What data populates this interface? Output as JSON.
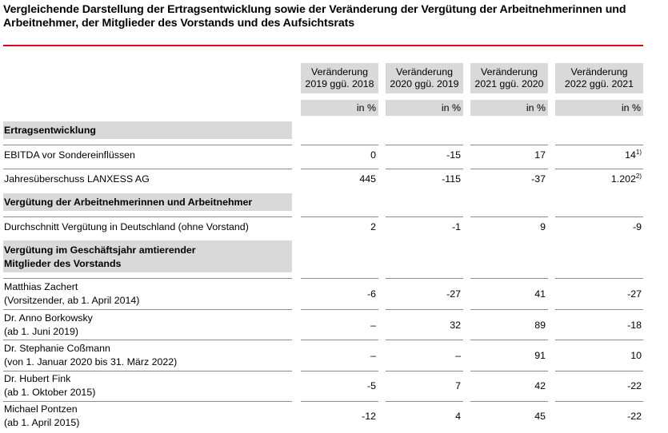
{
  "title": "Vergleichende Darstellung der Ertragsentwicklung sowie der Veränderung der Vergütung der Arbeitnehmerinnen und Arbeitnehmer, der Mitglieder des Vorstands und des Aufsichtsrats",
  "columns": [
    {
      "line1": "Veränderung",
      "line2": "2019 ggü. 2018",
      "unit": "in %"
    },
    {
      "line1": "Veränderung",
      "line2": "2020 ggü. 2019",
      "unit": "in %"
    },
    {
      "line1": "Veränderung",
      "line2": "2021 ggü. 2020",
      "unit": "in %"
    },
    {
      "line1": "Veränderung",
      "line2": "2022 ggü. 2021",
      "unit": "in %"
    }
  ],
  "sections": {
    "ertrag": "Ertragsentwicklung",
    "arbeitnehmer": "Vergütung der Arbeitnehmerinnen und Arbeitnehmer",
    "vorstand_line1": "Vergütung im Geschäftsjahr amtierender",
    "vorstand_line2": "Mitglieder des Vorstands"
  },
  "rows": [
    {
      "label1": "EBITDA vor Sondereinflüssen",
      "label2": "",
      "values": [
        "0",
        "-15",
        "17",
        "14"
      ],
      "last_note": "1)"
    },
    {
      "label1": "Jahresüberschuss LANXESS AG",
      "label2": "",
      "values": [
        "445",
        "-115",
        "-37",
        "1.202"
      ],
      "last_note": "2)"
    },
    {
      "label1": "Durchschnitt Vergütung in Deutschland (ohne Vorstand)",
      "label2": "",
      "values": [
        "2",
        "-1",
        "9",
        "-9"
      ],
      "last_note": ""
    },
    {
      "label1": "Matthias Zachert",
      "label2": "(Vorsitzender, ab 1. April 2014)",
      "values": [
        "-6",
        "-27",
        "41",
        "-27"
      ],
      "last_note": ""
    },
    {
      "label1": "Dr. Anno Borkowsky",
      "label2": "(ab 1. Juni 2019)",
      "values": [
        "–",
        "32",
        "89",
        "-18"
      ],
      "last_note": ""
    },
    {
      "label1": "Dr. Stephanie Coßmann",
      "label2": "(von 1. Januar 2020 bis 31. März 2022)",
      "values": [
        "–",
        "–",
        "91",
        "10"
      ],
      "last_note": ""
    },
    {
      "label1": "Dr. Hubert Fink",
      "label2": "(ab 1. Oktober 2015)",
      "values": [
        "-5",
        "7",
        "42",
        "-22"
      ],
      "last_note": ""
    },
    {
      "label1": "Michael Pontzen",
      "label2": "(ab 1. April 2015)",
      "values": [
        "-12",
        "4",
        "45",
        "-22"
      ],
      "last_note": ""
    }
  ]
}
